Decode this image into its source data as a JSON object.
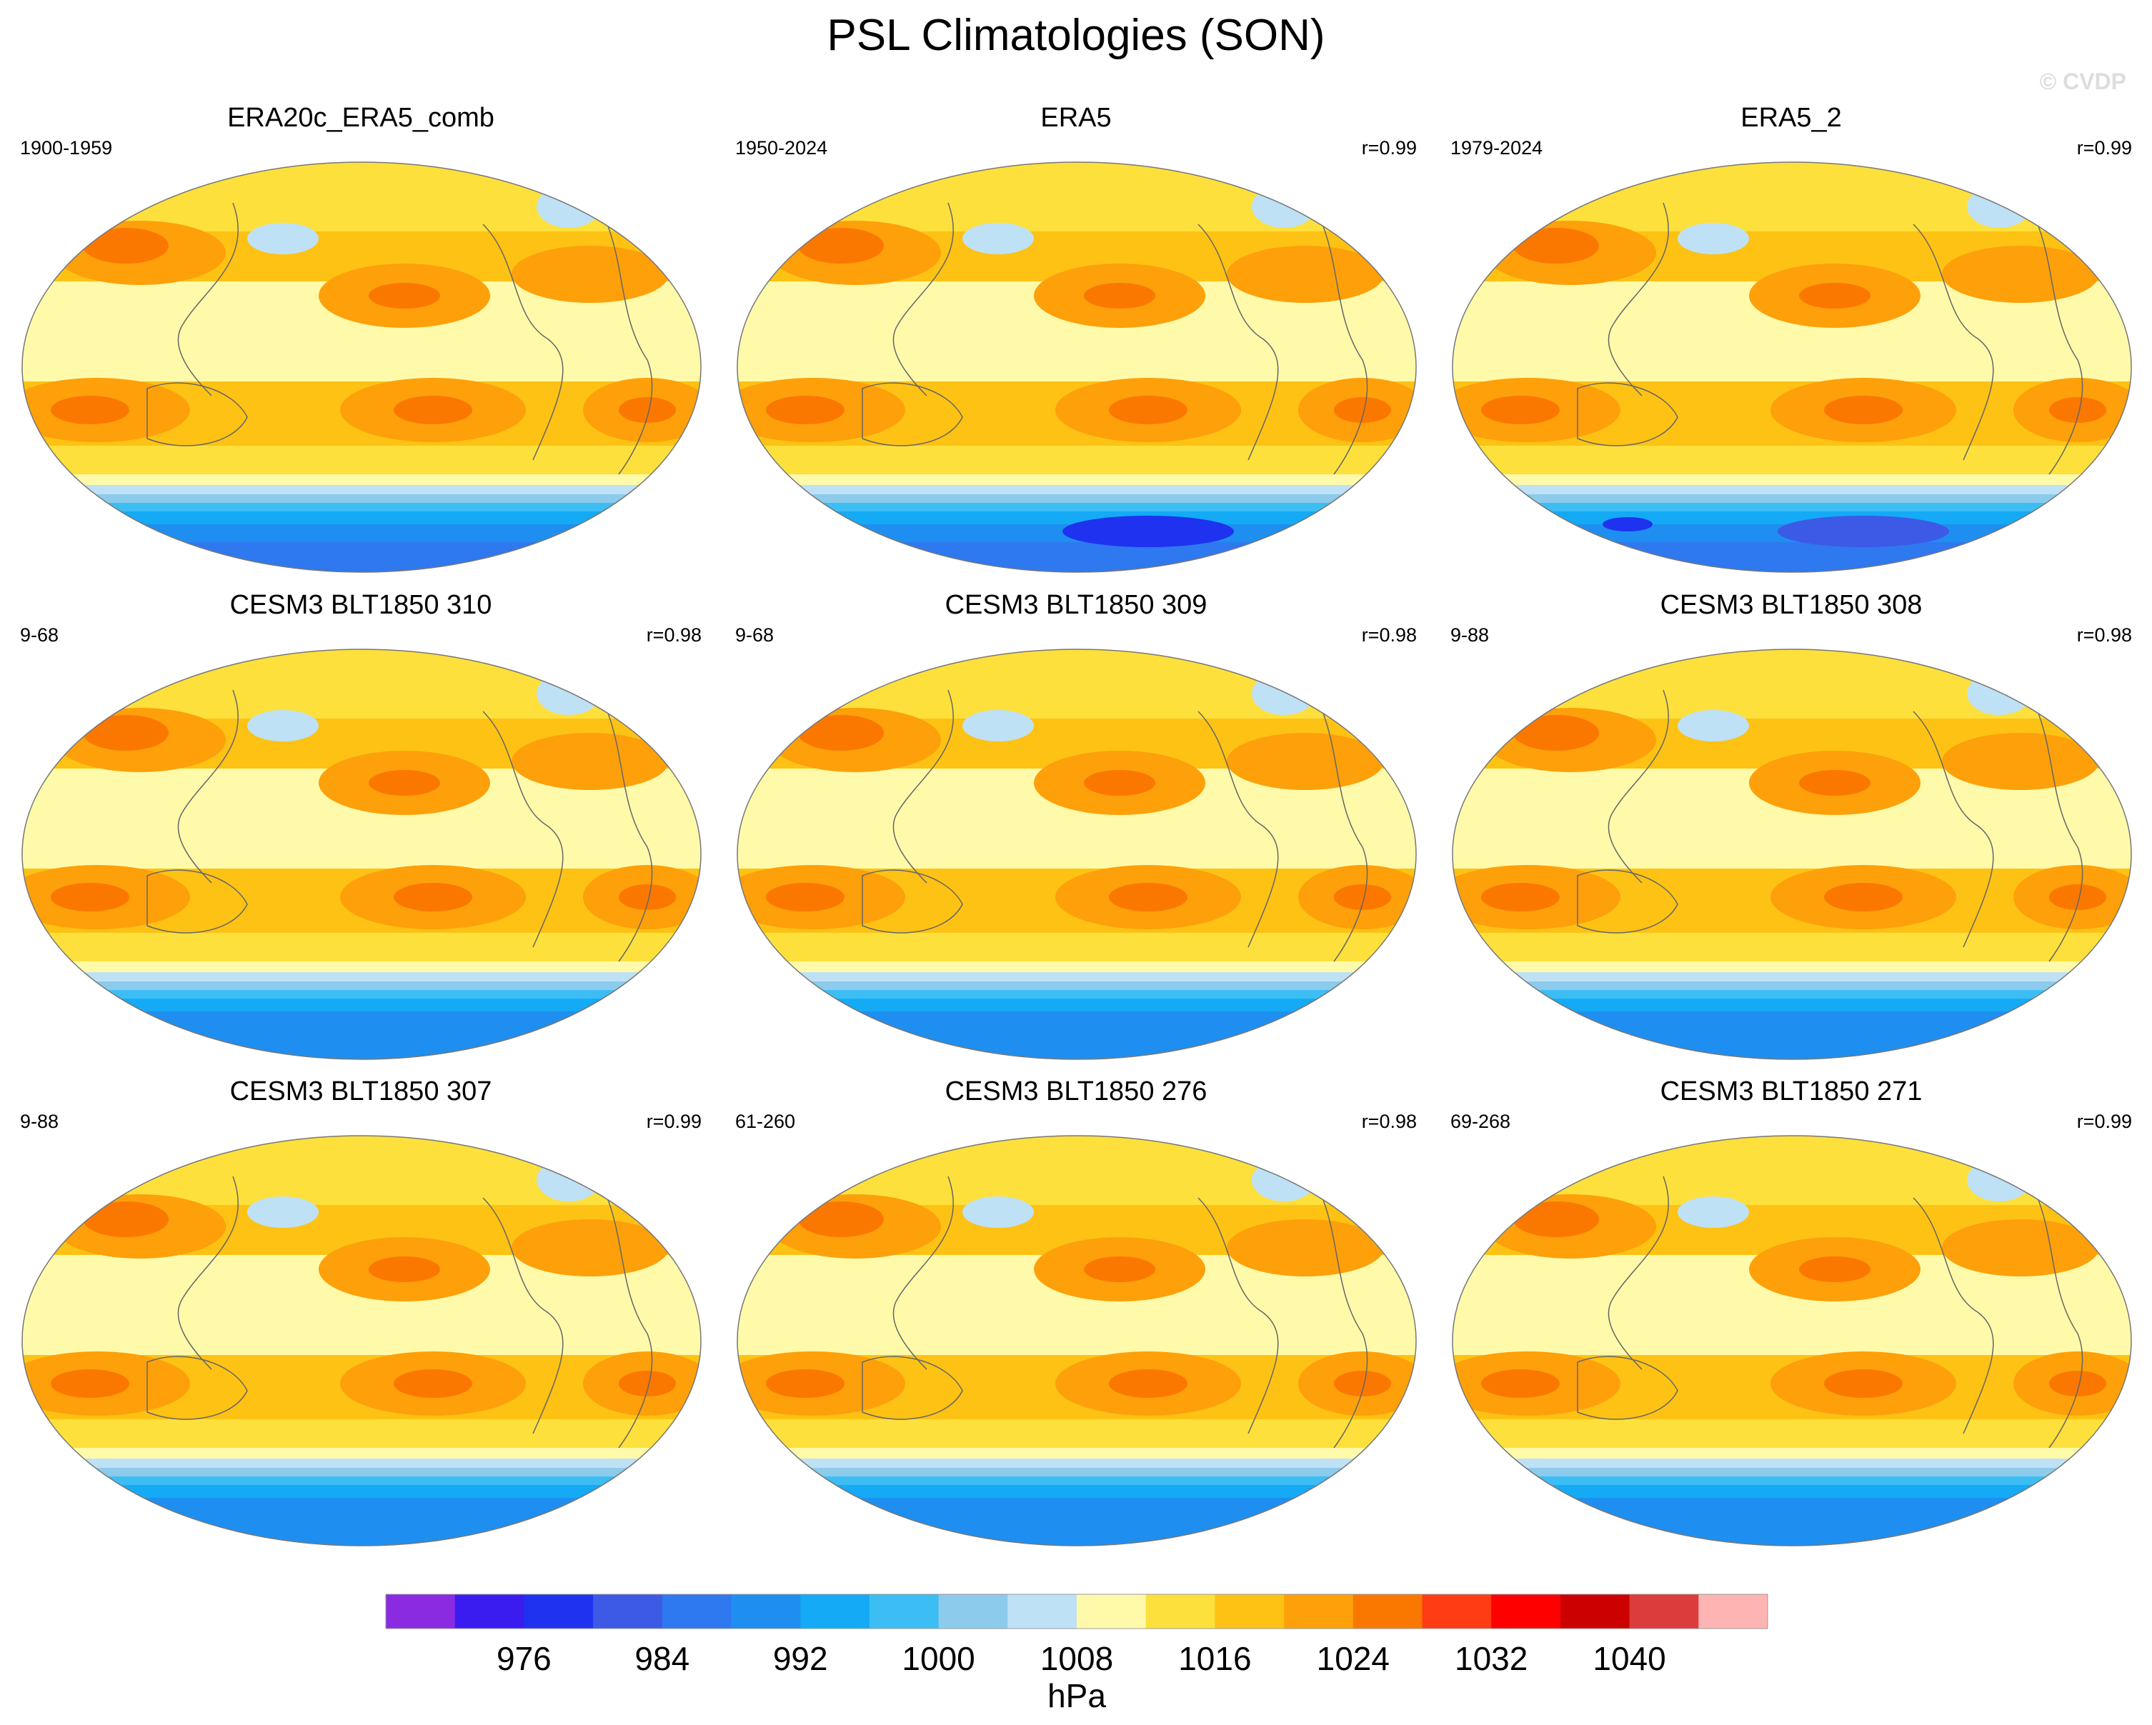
{
  "figure": {
    "title": "PSL Climatologies (SON)",
    "watermark": "© CVDP"
  },
  "panels": [
    {
      "title": "ERA20c_ERA5_comb",
      "years": "1900-1959",
      "r": ""
    },
    {
      "title": "ERA5",
      "years": "1950-2024",
      "r": "r=0.99"
    },
    {
      "title": "ERA5_2",
      "years": "1979-2024",
      "r": "r=0.99"
    },
    {
      "title": "CESM3 BLT1850 310",
      "years": "9-68",
      "r": "r=0.98"
    },
    {
      "title": "CESM3 BLT1850 309",
      "years": "9-68",
      "r": "r=0.98"
    },
    {
      "title": "CESM3 BLT1850 308",
      "years": "9-88",
      "r": "r=0.98"
    },
    {
      "title": "CESM3 BLT1850 307",
      "years": "9-88",
      "r": "r=0.99"
    },
    {
      "title": "CESM3 BLT1850 276",
      "years": "61-260",
      "r": "r=0.98"
    },
    {
      "title": "CESM3 BLT1850 271",
      "years": "69-268",
      "r": "r=0.99"
    }
  ],
  "chart_data": {
    "type": "heatmap",
    "title": "PSL Climatologies (SON)",
    "variable": "PSL",
    "season": "SON",
    "units": "hPa",
    "projection": "Robinson (Pacific-centered)",
    "contour_levels": [
      972,
      976,
      980,
      984,
      988,
      992,
      996,
      1000,
      1004,
      1008,
      1012,
      1016,
      1020,
      1024,
      1028,
      1032,
      1036,
      1040,
      1044
    ],
    "colorbar": {
      "label": "hPa",
      "tick_labels": [
        "976",
        "984",
        "992",
        "1000",
        "1008",
        "1016",
        "1024",
        "1032",
        "1040"
      ],
      "colors": [
        "#8a2be2",
        "#3a1cf0",
        "#1e32f0",
        "#3c5ae6",
        "#2e78f0",
        "#1e8ff0",
        "#14aaf5",
        "#3cbef5",
        "#8ccbeb",
        "#bfe1f5",
        "#fffaaa",
        "#fde03c",
        "#fdc214",
        "#fda00a",
        "#fb7800",
        "#ff3c14",
        "#ff0000",
        "#cd0000",
        "#dc3c3c",
        "#ffb4b4"
      ]
    },
    "panels": [
      {
        "name": "ERA20c_ERA5_comb",
        "years": "1900-1959",
        "pattern_correlation": null
      },
      {
        "name": "ERA5",
        "years": "1950-2024",
        "pattern_correlation": 0.99
      },
      {
        "name": "ERA5_2",
        "years": "1979-2024",
        "pattern_correlation": 0.99
      },
      {
        "name": "CESM3 BLT1850 310",
        "years": "9-68",
        "pattern_correlation": 0.98
      },
      {
        "name": "CESM3 BLT1850 309",
        "years": "9-68",
        "pattern_correlation": 0.98
      },
      {
        "name": "CESM3 BLT1850 308",
        "years": "9-88",
        "pattern_correlation": 0.98
      },
      {
        "name": "CESM3 BLT1850 307",
        "years": "9-88",
        "pattern_correlation": 0.99
      },
      {
        "name": "CESM3 BLT1850 276",
        "years": "61-260",
        "pattern_correlation": 0.98
      },
      {
        "name": "CESM3 BLT1850 271",
        "years": "69-268",
        "pattern_correlation": 0.99
      }
    ]
  }
}
